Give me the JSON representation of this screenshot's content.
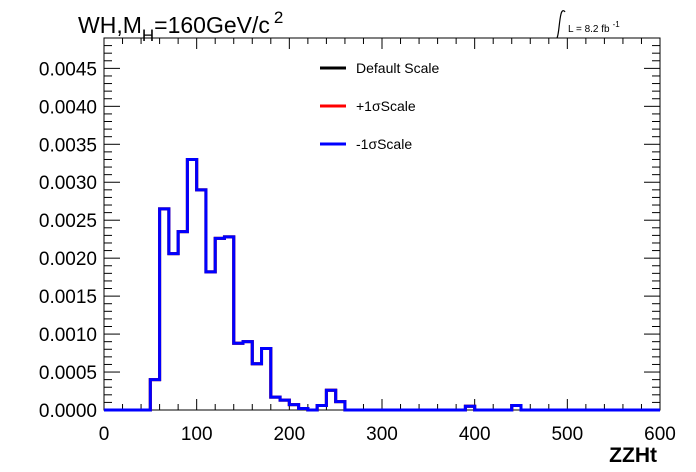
{
  "chart_data": {
    "type": "line",
    "title_main": "WH,M",
    "title_sub": "H",
    "title_rest": "=160GeV/c",
    "title_sup": "2",
    "lumi_label": "L = 8.2 fb",
    "lumi_sup": "-1",
    "xlabel": "ZZHt",
    "ylabel": "",
    "xlim": [
      0,
      600
    ],
    "ylim": [
      0,
      0.0049
    ],
    "xticks": [
      "0",
      "100",
      "200",
      "300",
      "400",
      "500",
      "600"
    ],
    "yticks": [
      "0.0000",
      "0.0005",
      "0.0010",
      "0.0015",
      "0.0020",
      "0.0025",
      "0.0030",
      "0.0035",
      "0.0040",
      "0.0045"
    ],
    "bin_width": 10,
    "bin_edges_start": 0,
    "series": [
      {
        "name": "Default Scale",
        "color": "#000000",
        "values": [
          0,
          0,
          0,
          0,
          0,
          0.0004,
          0.00265,
          0.00206,
          0.00235,
          0.0033,
          0.0029,
          0.00182,
          0.00226,
          0.00228,
          0.00088,
          0.0009,
          0.00061,
          0.00081,
          0.00017,
          0.00013,
          7e-05,
          2e-05,
          0,
          6e-05,
          0.00026,
          0.00011,
          0,
          0,
          0,
          0,
          0,
          0,
          0,
          0,
          0,
          0,
          0,
          0,
          0,
          5e-05,
          0,
          0,
          0,
          0,
          6e-05,
          0,
          0,
          0,
          0,
          0,
          0,
          0,
          0,
          0,
          0,
          0,
          0,
          0,
          0,
          0
        ]
      },
      {
        "name": "+1σScale",
        "color": "#ff0000",
        "values": [
          0,
          0,
          0,
          0,
          0,
          0.0004,
          0.00265,
          0.00206,
          0.00235,
          0.0033,
          0.0029,
          0.00182,
          0.00226,
          0.00228,
          0.00088,
          0.0009,
          0.00061,
          0.00081,
          0.00017,
          0.00013,
          7e-05,
          2e-05,
          0,
          6e-05,
          0.00026,
          0.00011,
          0,
          0,
          0,
          0,
          0,
          0,
          0,
          0,
          0,
          0,
          0,
          0,
          0,
          5e-05,
          0,
          0,
          0,
          0,
          6e-05,
          0,
          0,
          0,
          0,
          0,
          0,
          0,
          0,
          0,
          0,
          0,
          0,
          0,
          0,
          0
        ]
      },
      {
        "name": "-1σScale",
        "color": "#0000ff",
        "values": [
          0,
          0,
          0,
          0,
          0,
          0.0004,
          0.00265,
          0.00206,
          0.00235,
          0.0033,
          0.0029,
          0.00182,
          0.00226,
          0.00228,
          0.00088,
          0.0009,
          0.00061,
          0.00081,
          0.00017,
          0.00013,
          7e-05,
          2e-05,
          0,
          6e-05,
          0.00026,
          0.00011,
          0,
          0,
          0,
          0,
          0,
          0,
          0,
          0,
          0,
          0,
          0,
          0,
          0,
          5e-05,
          0,
          0,
          0,
          0,
          6e-05,
          0,
          0,
          0,
          0,
          0,
          0,
          0,
          0,
          0,
          0,
          0,
          0,
          0,
          0,
          0
        ]
      }
    ],
    "legend_position": "top-center",
    "grid": false
  }
}
